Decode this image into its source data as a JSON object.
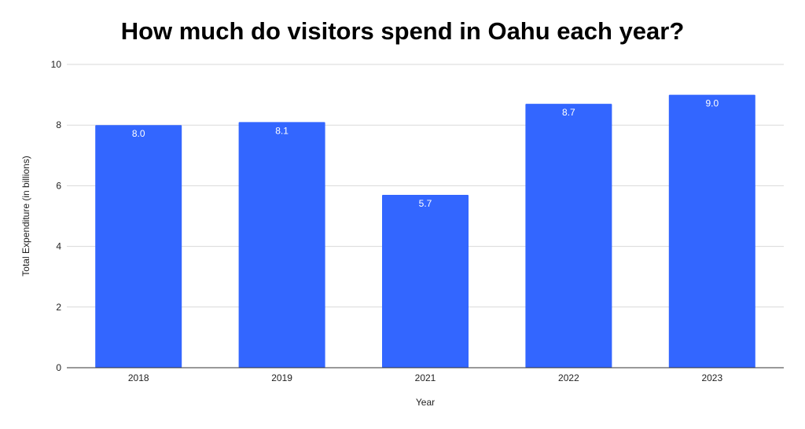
{
  "chart_data": {
    "type": "bar",
    "title": "How much do visitors spend in Oahu each year?",
    "xlabel": "Year",
    "ylabel": "Total Expenditure (in billions)",
    "categories": [
      "2018",
      "2019",
      "2021",
      "2022",
      "2023"
    ],
    "values": [
      8.0,
      8.1,
      5.7,
      8.7,
      9.0
    ],
    "value_labels": [
      "8.0",
      "8.1",
      "5.7",
      "8.7",
      "9.0"
    ],
    "ylim": [
      0,
      10
    ],
    "yticks": [
      "0",
      "2",
      "4",
      "6",
      "8",
      "10"
    ],
    "grid": true,
    "legend": "none",
    "colors": {
      "bar": "#3366ff",
      "grid": "#d9d9d9",
      "axis": "#333333"
    }
  }
}
